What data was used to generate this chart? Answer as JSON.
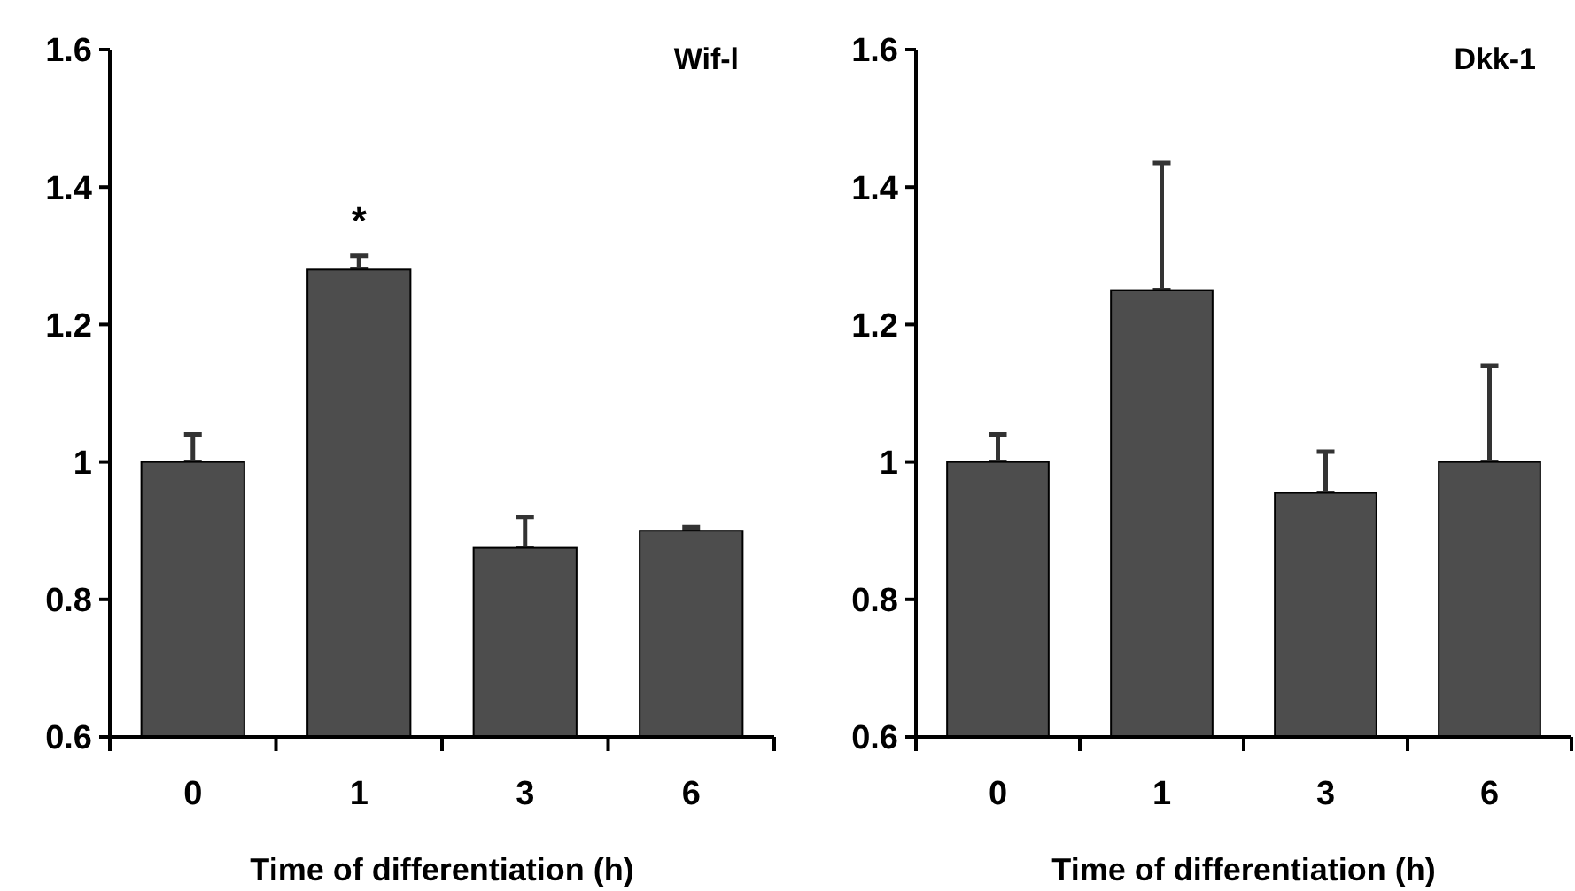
{
  "chart_data": [
    {
      "type": "bar",
      "title": "Wif-l",
      "xlabel": "Time of differentiation (h)",
      "categories": [
        "0",
        "1",
        "3",
        "6"
      ],
      "values": [
        1.0,
        1.28,
        0.875,
        0.9
      ],
      "errors": [
        [
          1.0,
          1.04
        ],
        [
          1.28,
          1.3
        ],
        [
          0.875,
          0.92
        ],
        [
          0.9,
          0.905
        ]
      ],
      "color": "#4d4d4d",
      "ylim": [
        0.6,
        1.6
      ],
      "yticks": [
        0.6,
        0.8,
        {
          "value": 1,
          "label": "1"
        },
        1.2,
        1.4,
        1.6
      ],
      "annotations": [
        "*"
      ]
    },
    {
      "type": "bar",
      "title": "Dkk-1",
      "xlabel": "Time of differentiation (h)",
      "categories": [
        "0",
        "1",
        "3",
        "6"
      ],
      "values": [
        1.0,
        1.25,
        0.955,
        1.0
      ],
      "errors": [
        [
          1.0,
          1.04
        ],
        [
          1.25,
          1.435
        ],
        [
          0.955,
          1.015
        ],
        [
          1.0,
          1.14
        ]
      ],
      "color": "#4d4d4d",
      "ylim": [
        0.6,
        1.6
      ],
      "yticks": [
        0.6,
        0.8,
        {
          "value": 1,
          "label": "1"
        },
        1.2,
        1.4,
        1.6
      ]
    }
  ]
}
